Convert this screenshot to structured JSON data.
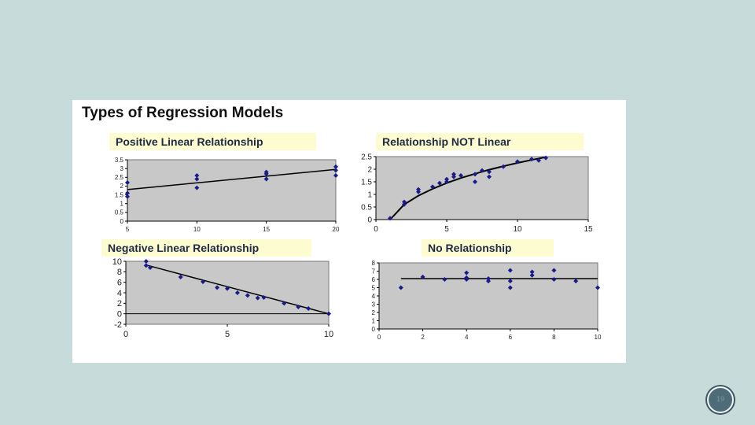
{
  "title": "Types of Regression Models",
  "page_number": "19",
  "chart_data": [
    {
      "type": "scatter",
      "title": "Positive Linear Relationship",
      "xlim": [
        5,
        20
      ],
      "ylim": [
        0,
        3.5
      ],
      "xticks": [
        5,
        10,
        15,
        20
      ],
      "yticks": [
        0,
        0.5,
        1,
        1.5,
        2,
        2.5,
        3,
        3.5
      ],
      "grid": false,
      "points": [
        [
          5,
          1.4
        ],
        [
          5,
          1.6
        ],
        [
          5,
          2.2
        ],
        [
          10,
          1.9
        ],
        [
          10,
          2.4
        ],
        [
          10,
          2.6
        ],
        [
          15,
          2.4
        ],
        [
          15,
          2.7
        ],
        [
          15,
          2.8
        ],
        [
          20,
          2.6
        ],
        [
          20,
          2.9
        ],
        [
          20,
          3.1
        ]
      ],
      "line": [
        [
          5,
          1.8
        ],
        [
          20,
          2.95
        ]
      ]
    },
    {
      "type": "scatter",
      "title": "Relationship NOT Linear",
      "xlim": [
        0,
        15
      ],
      "ylim": [
        0,
        2.5
      ],
      "xticks": [
        0,
        5,
        10,
        15
      ],
      "yticks": [
        0,
        0.5,
        1,
        1.5,
        2,
        2.5
      ],
      "grid": false,
      "points": [
        [
          1,
          0.05
        ],
        [
          2,
          0.6
        ],
        [
          2,
          0.7
        ],
        [
          3,
          1.1
        ],
        [
          3,
          1.2
        ],
        [
          4,
          1.3
        ],
        [
          4.5,
          1.45
        ],
        [
          5,
          1.5
        ],
        [
          5,
          1.6
        ],
        [
          5.5,
          1.7
        ],
        [
          5.5,
          1.8
        ],
        [
          6,
          1.75
        ],
        [
          7,
          1.5
        ],
        [
          7,
          1.8
        ],
        [
          7.5,
          1.95
        ],
        [
          8,
          1.7
        ],
        [
          8,
          1.9
        ],
        [
          9,
          2.1
        ],
        [
          10,
          2.3
        ],
        [
          11,
          2.4
        ],
        [
          11.5,
          2.35
        ],
        [
          12,
          2.45
        ]
      ],
      "curve": [
        [
          1,
          0
        ],
        [
          1.5,
          0.3
        ],
        [
          2,
          0.6
        ],
        [
          3,
          0.95
        ],
        [
          4,
          1.22
        ],
        [
          5,
          1.45
        ],
        [
          6,
          1.65
        ],
        [
          7,
          1.82
        ],
        [
          8,
          1.98
        ],
        [
          9,
          2.12
        ],
        [
          10,
          2.25
        ],
        [
          11,
          2.37
        ],
        [
          12,
          2.48
        ]
      ]
    },
    {
      "type": "scatter",
      "title": "Negative Linear Relationship",
      "xlim": [
        0,
        10
      ],
      "ylim": [
        -2,
        10
      ],
      "xticks": [
        0,
        5,
        10
      ],
      "yticks": [
        -2,
        0,
        2,
        4,
        6,
        8,
        10
      ],
      "grid": false,
      "points": [
        [
          1,
          10
        ],
        [
          1,
          9.2
        ],
        [
          1.2,
          8.8
        ],
        [
          2.7,
          7
        ],
        [
          3.8,
          6.1
        ],
        [
          4.5,
          5
        ],
        [
          5,
          4.8
        ],
        [
          5.5,
          4
        ],
        [
          6,
          3.5
        ],
        [
          6.5,
          3
        ],
        [
          6.8,
          3.1
        ],
        [
          7.8,
          2
        ],
        [
          8.5,
          1.3
        ],
        [
          9,
          1
        ],
        [
          10,
          0
        ]
      ],
      "line": [
        [
          1,
          9.3
        ],
        [
          10,
          0
        ]
      ]
    },
    {
      "type": "scatter",
      "title": "No Relationship",
      "xlim": [
        0,
        10
      ],
      "ylim": [
        0,
        8
      ],
      "xticks": [
        0,
        2,
        4,
        6,
        8,
        10
      ],
      "yticks": [
        0,
        1,
        2,
        3,
        4,
        5,
        6,
        7,
        8
      ],
      "grid": false,
      "points": [
        [
          1,
          5
        ],
        [
          2,
          6.3
        ],
        [
          3,
          6
        ],
        [
          4,
          6
        ],
        [
          4,
          6.2
        ],
        [
          4,
          6.8
        ],
        [
          5,
          5.8
        ],
        [
          5,
          6.1
        ],
        [
          6,
          5
        ],
        [
          6,
          5.8
        ],
        [
          6,
          7.1
        ],
        [
          7,
          6.5
        ],
        [
          7,
          6.9
        ],
        [
          8,
          6
        ],
        [
          8,
          7.1
        ],
        [
          9,
          5.8
        ],
        [
          10,
          5
        ]
      ],
      "line": [
        [
          1,
          6.1
        ],
        [
          10,
          6.1
        ]
      ]
    }
  ],
  "colors": {
    "plot_area": "#c8c8c8",
    "point": "#1a1a8a",
    "line": "#000000",
    "title_bg": "#fdfbd0"
  }
}
